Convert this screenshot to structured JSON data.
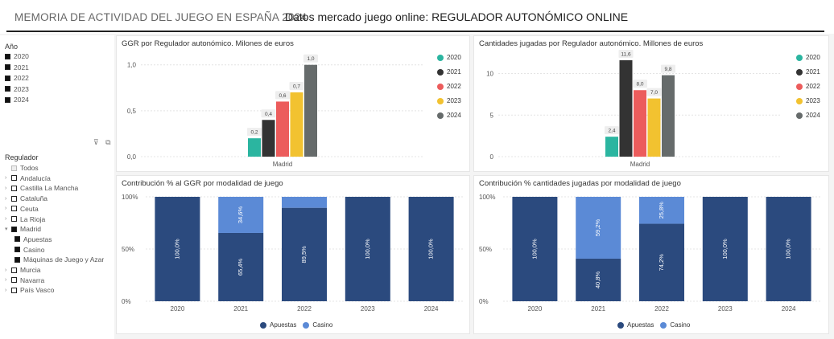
{
  "header": {
    "title": "MEMORIA DE ACTIVIDAD DEL JUEGO EN ESPAÑA 2024",
    "subtitle": "Datos mercado juego online: REGULADOR AUTONÓMICO ONLINE"
  },
  "slicers": {
    "year_title": "Año",
    "years": [
      "2020",
      "2021",
      "2022",
      "2023",
      "2024"
    ],
    "regulator_title": "Regulador",
    "regulators": [
      {
        "label": "Todos",
        "state": "grey",
        "arrow": ""
      },
      {
        "label": "Andalucía",
        "state": "empty",
        "arrow": "›"
      },
      {
        "label": "Castilla La Mancha",
        "state": "empty",
        "arrow": "›"
      },
      {
        "label": "Cataluña",
        "state": "empty",
        "arrow": "›"
      },
      {
        "label": "Ceuta",
        "state": "empty",
        "arrow": "›"
      },
      {
        "label": "La Rioja",
        "state": "empty",
        "arrow": "›"
      },
      {
        "label": "Madrid",
        "state": "filled",
        "arrow": "▾"
      },
      {
        "label": "Apuestas",
        "state": "filled",
        "arrow": "",
        "indent": true
      },
      {
        "label": "Casino",
        "state": "filled",
        "arrow": "",
        "indent": true
      },
      {
        "label": "Máquinas de Juego y Azar",
        "state": "filled",
        "arrow": "",
        "indent": true
      },
      {
        "label": "Murcia",
        "state": "empty",
        "arrow": "›"
      },
      {
        "label": "Navarra",
        "state": "empty",
        "arrow": "›"
      },
      {
        "label": "País Vasco",
        "state": "empty",
        "arrow": "›"
      }
    ]
  },
  "colors": {
    "2020": "#2bb5a0",
    "2021": "#333333",
    "2022": "#ec5c5c",
    "2023": "#f2c230",
    "2024": "#666b6b",
    "Apuestas": "#2b4a7e",
    "Casino": "#5b8ad6"
  },
  "chart_data": [
    {
      "type": "bar",
      "title": "GGR por Regulador autonómico. Milones de euros",
      "categories": [
        "Madrid"
      ],
      "series": [
        {
          "name": "2020",
          "values": [
            0.2
          ]
        },
        {
          "name": "2021",
          "values": [
            0.4
          ]
        },
        {
          "name": "2022",
          "values": [
            0.6
          ]
        },
        {
          "name": "2023",
          "values": [
            0.7
          ]
        },
        {
          "name": "2024",
          "values": [
            1.0
          ]
        }
      ],
      "value_labels": [
        "0,2",
        "0,4",
        "0,6",
        "0,7",
        "1,0"
      ],
      "yticks": [
        "0,0",
        "0,5",
        "1,0"
      ],
      "ytick_values": [
        0,
        0.5,
        1.0
      ],
      "ylim": [
        0,
        1.05
      ],
      "legend": "right",
      "xlabel": "",
      "ylabel": ""
    },
    {
      "type": "bar",
      "title": "Cantidades jugadas por Regulador autonómico. Millones de euros",
      "categories": [
        "Madrid"
      ],
      "series": [
        {
          "name": "2020",
          "values": [
            2.4
          ]
        },
        {
          "name": "2021",
          "values": [
            11.6
          ]
        },
        {
          "name": "2022",
          "values": [
            8.0
          ]
        },
        {
          "name": "2023",
          "values": [
            7.0
          ]
        },
        {
          "name": "2024",
          "values": [
            9.8
          ]
        }
      ],
      "value_labels": [
        "2,4",
        "11,6",
        "8,0",
        "7,0",
        "9,8"
      ],
      "yticks": [
        "0",
        "5",
        "10"
      ],
      "ytick_values": [
        0,
        5,
        10
      ],
      "ylim": [
        0,
        11.6
      ],
      "legend": "right",
      "xlabel": "",
      "ylabel": ""
    },
    {
      "type": "bar",
      "stacked": true,
      "title": "Contribución % al GGR por modalidad de juego",
      "categories": [
        "2020",
        "2021",
        "2022",
        "2023",
        "2024"
      ],
      "series": [
        {
          "name": "Apuestas",
          "values": [
            100.0,
            65.4,
            89.5,
            100.0,
            100.0
          ],
          "labels": [
            "100,0%",
            "65,4%",
            "89,5%",
            "100,0%",
            "100,0%"
          ]
        },
        {
          "name": "Casino",
          "values": [
            0,
            34.6,
            10.5,
            0,
            0
          ],
          "labels": [
            "",
            "34,6%",
            "",
            "",
            ""
          ]
        }
      ],
      "yticks": [
        "0%",
        "50%",
        "100%"
      ],
      "ylim": [
        0,
        100
      ],
      "legend": "bottom",
      "xlabel": "",
      "ylabel": ""
    },
    {
      "type": "bar",
      "stacked": true,
      "title": "Contribución % cantidades jugadas por modalidad de juego",
      "categories": [
        "2020",
        "2021",
        "2022",
        "2023",
        "2024"
      ],
      "series": [
        {
          "name": "Apuestas",
          "values": [
            100.0,
            40.8,
            74.2,
            100.0,
            100.0
          ],
          "labels": [
            "100,0%",
            "40,8%",
            "74,2%",
            "100,0%",
            "100,0%"
          ]
        },
        {
          "name": "Casino",
          "values": [
            0,
            59.2,
            25.8,
            0,
            0
          ],
          "labels": [
            "",
            "59,2%",
            "25,8%",
            "",
            ""
          ]
        }
      ],
      "yticks": [
        "0%",
        "50%",
        "100%"
      ],
      "ylim": [
        0,
        100
      ],
      "legend": "bottom",
      "xlabel": "",
      "ylabel": ""
    }
  ]
}
